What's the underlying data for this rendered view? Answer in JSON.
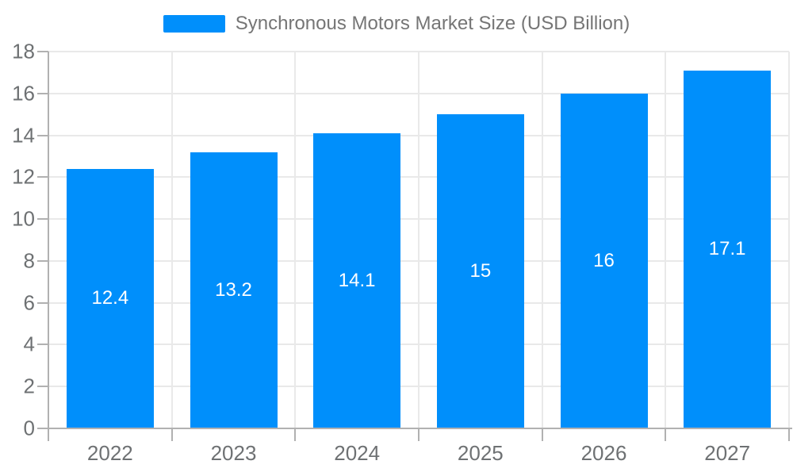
{
  "chart_data": {
    "type": "bar",
    "title": "Synchronous Motors Market Size (USD Billion)",
    "categories": [
      "2022",
      "2023",
      "2024",
      "2025",
      "2026",
      "2027"
    ],
    "series": [
      {
        "name": "Synchronous Motors Market Size (USD Billion)",
        "values": [
          12.4,
          13.2,
          14.1,
          15,
          16,
          17.1
        ]
      }
    ],
    "bar_labels": [
      "12.4",
      "13.2",
      "14.1",
      "15",
      "16",
      "17.1"
    ],
    "xlabel": "",
    "ylabel": "",
    "ylim": [
      0,
      18
    ],
    "yticks": [
      0,
      2,
      4,
      6,
      8,
      10,
      12,
      14,
      16,
      18
    ],
    "grid": true,
    "legend_position": "top",
    "colors": {
      "bar": "#008FFB",
      "grid": "#e9e9e9",
      "axis": "#b1b1b1",
      "axis_label": "#6e7173",
      "legend_text": "#757575",
      "bar_label_text": "#ffffff",
      "background": "#ffffff"
    }
  }
}
